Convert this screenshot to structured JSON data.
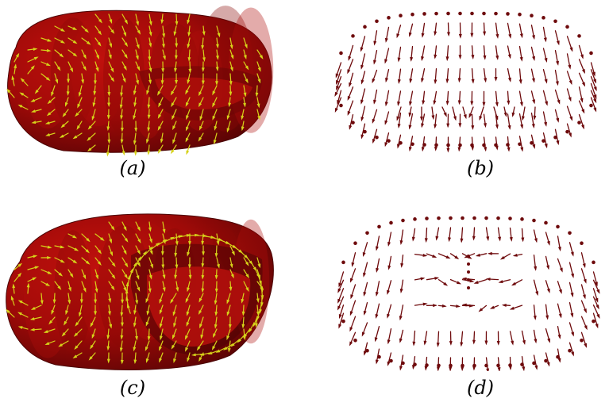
{
  "figure": {
    "panels": [
      {
        "id": "a",
        "label": "(a)",
        "kind": "surface-with-vectors",
        "surface_color": "#9e0a08",
        "vector_color": "#d6d21a"
      },
      {
        "id": "b",
        "label": "(b)",
        "kind": "vector-field-only",
        "vector_color": "#6e0a0c"
      },
      {
        "id": "c",
        "label": "(c)",
        "kind": "surface-with-vectors",
        "surface_color": "#9e0a08",
        "vector_color": "#d6d21a"
      },
      {
        "id": "d",
        "label": "(d)",
        "kind": "vector-field-only",
        "vector_color": "#6e0a0c"
      }
    ]
  }
}
